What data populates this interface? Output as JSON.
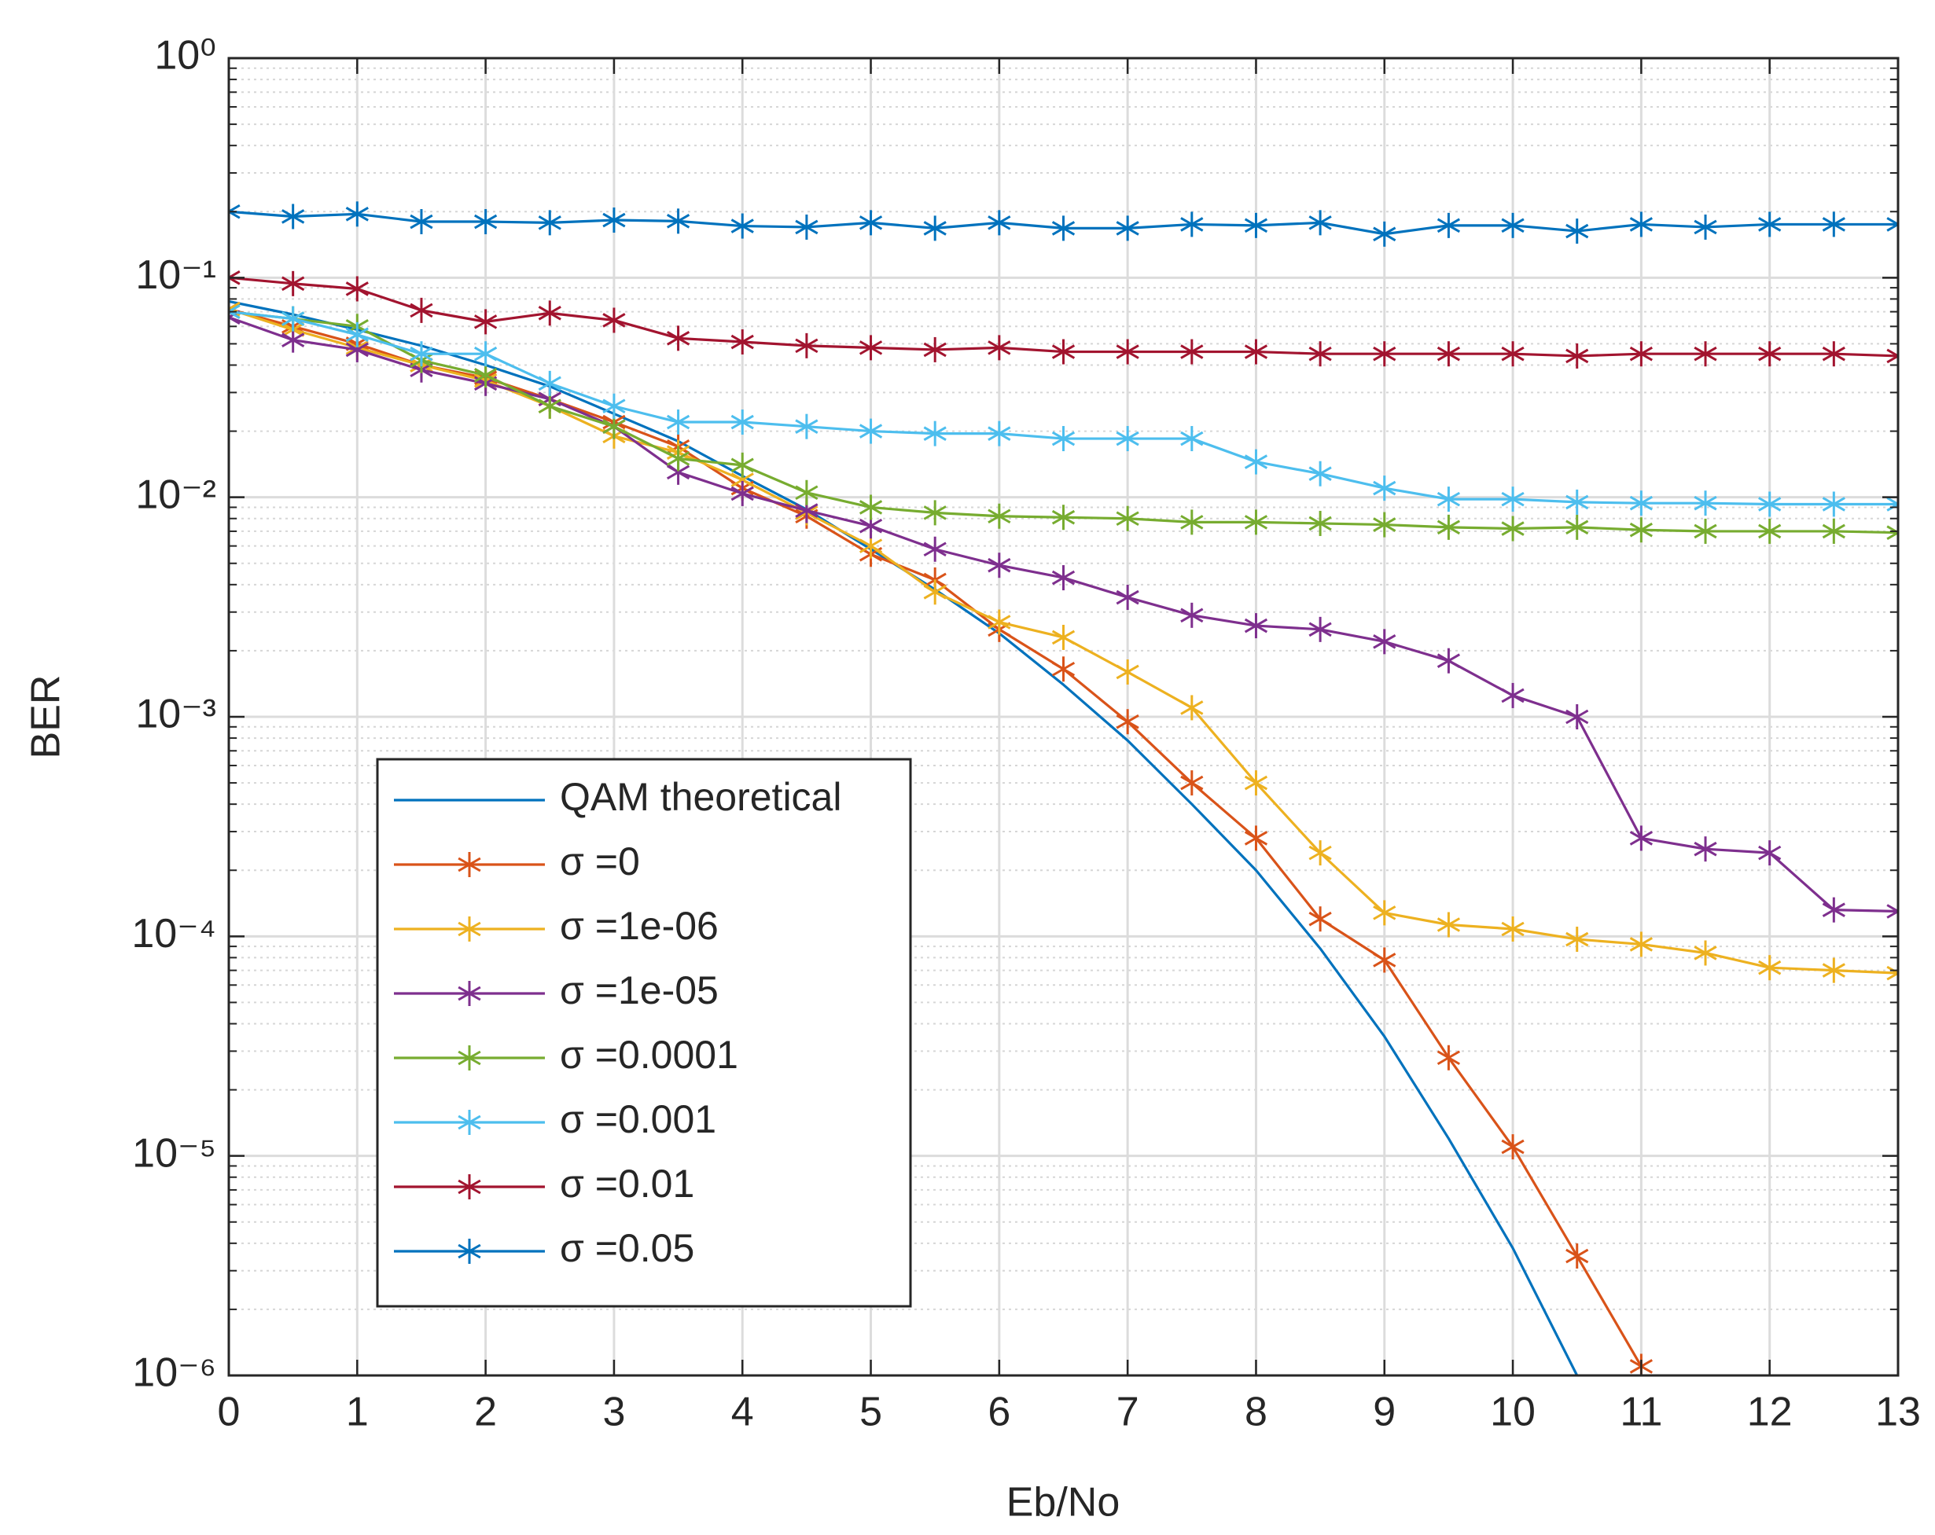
{
  "chart_data": {
    "type": "line",
    "xlabel": "Eb/No",
    "ylabel": "BER",
    "x": [
      0,
      0.5,
      1,
      1.5,
      2,
      2.5,
      3,
      3.5,
      4,
      4.5,
      5,
      5.5,
      6,
      6.5,
      7,
      7.5,
      8,
      8.5,
      9,
      9.5,
      10,
      10.5,
      11,
      11.5,
      12,
      12.5,
      13
    ],
    "xlim": [
      0,
      13
    ],
    "xticks": [
      0,
      1,
      2,
      3,
      4,
      5,
      6,
      7,
      8,
      9,
      10,
      11,
      12,
      13
    ],
    "ylim": [
      1e-06,
      1
    ],
    "yticks": [
      {
        "value": 1e-06,
        "label": "10⁻⁶"
      },
      {
        "value": 1e-05,
        "label": "10⁻⁵"
      },
      {
        "value": 0.0001,
        "label": "10⁻⁴"
      },
      {
        "value": 0.001,
        "label": "10⁻³"
      },
      {
        "value": 0.01,
        "label": "10⁻²"
      },
      {
        "value": 0.1,
        "label": "10⁻¹"
      },
      {
        "value": 1,
        "label": "10⁰"
      }
    ],
    "log_y": true,
    "grid": true,
    "minor_grid": true,
    "legend": "lower left",
    "series": [
      {
        "name": "QAM theoretical",
        "color": "#0072bd",
        "marker": "none",
        "values": [
          0.078,
          0.068,
          0.058,
          0.049,
          0.04,
          0.032,
          0.024,
          0.018,
          0.0125,
          0.0088,
          0.0058,
          0.0038,
          0.0024,
          0.0014,
          0.00078,
          0.0004,
          0.0002,
          8.8e-05,
          3.5e-05,
          1.2e-05,
          3.8e-06,
          1e-06,
          null,
          null,
          null,
          null,
          null
        ]
      },
      {
        "name": "σ =0",
        "color": "#d95319",
        "marker": "*",
        "values": [
          0.072,
          0.06,
          0.05,
          0.04,
          0.035,
          0.028,
          0.022,
          0.017,
          0.011,
          0.0082,
          0.0055,
          0.0042,
          0.0025,
          0.00165,
          0.00095,
          0.0005,
          0.00028,
          0.00012,
          7.8e-05,
          2.8e-05,
          1.1e-05,
          3.5e-06,
          1.1e-06,
          null,
          null,
          null,
          null
        ]
      },
      {
        "name": "σ =1e-06",
        "color": "#edb120",
        "marker": "*",
        "values": [
          0.072,
          0.058,
          0.048,
          0.04,
          0.034,
          0.026,
          0.019,
          0.016,
          0.012,
          0.0085,
          0.006,
          0.0037,
          0.0027,
          0.0023,
          0.0016,
          0.0011,
          0.0005,
          0.00024,
          0.000128,
          0.000113,
          0.000108,
          9.7e-05,
          9.2e-05,
          8.4e-05,
          7.2e-05,
          7e-05,
          6.8e-05
        ]
      },
      {
        "name": "σ =1e-05",
        "color": "#7e2f8e",
        "marker": "*",
        "values": [
          0.066,
          0.052,
          0.047,
          0.038,
          0.033,
          0.028,
          0.021,
          0.013,
          0.0104,
          0.0087,
          0.0074,
          0.0058,
          0.0049,
          0.0043,
          0.0035,
          0.0029,
          0.0026,
          0.0025,
          0.0022,
          0.0018,
          0.00125,
          0.001,
          0.00028,
          0.00025,
          0.00024,
          0.000132,
          0.00013
        ]
      },
      {
        "name": "σ =0.0001",
        "color": "#77ac30",
        "marker": "*",
        "values": [
          0.07,
          0.065,
          0.06,
          0.042,
          0.036,
          0.026,
          0.021,
          0.015,
          0.014,
          0.0105,
          0.009,
          0.0085,
          0.0082,
          0.0081,
          0.008,
          0.0077,
          0.0077,
          0.0076,
          0.0075,
          0.0073,
          0.0072,
          0.0073,
          0.0071,
          0.007,
          0.007,
          0.007,
          0.0069
        ]
      },
      {
        "name": "σ =0.001",
        "color": "#4dbeee",
        "marker": "*",
        "values": [
          0.07,
          0.065,
          0.055,
          0.045,
          0.045,
          0.033,
          0.026,
          0.022,
          0.022,
          0.021,
          0.02,
          0.0195,
          0.0195,
          0.0185,
          0.0185,
          0.0185,
          0.0145,
          0.0128,
          0.011,
          0.0098,
          0.0098,
          0.0095,
          0.0094,
          0.0094,
          0.0093,
          0.0093,
          0.0093
        ]
      },
      {
        "name": "σ =0.01",
        "color": "#a2142f",
        "marker": "*",
        "values": [
          0.1,
          0.094,
          0.089,
          0.071,
          0.063,
          0.069,
          0.064,
          0.053,
          0.051,
          0.049,
          0.048,
          0.047,
          0.048,
          0.046,
          0.046,
          0.046,
          0.046,
          0.045,
          0.045,
          0.045,
          0.045,
          0.044,
          0.045,
          0.045,
          0.045,
          0.045,
          0.044
        ]
      },
      {
        "name": "σ =0.05",
        "color": "#0072bd",
        "marker": "*",
        "values": [
          0.2,
          0.19,
          0.195,
          0.18,
          0.18,
          0.178,
          0.183,
          0.181,
          0.172,
          0.17,
          0.178,
          0.168,
          0.178,
          0.168,
          0.168,
          0.175,
          0.173,
          0.178,
          0.158,
          0.173,
          0.173,
          0.163,
          0.175,
          0.17,
          0.175,
          0.175,
          0.175
        ]
      }
    ]
  }
}
